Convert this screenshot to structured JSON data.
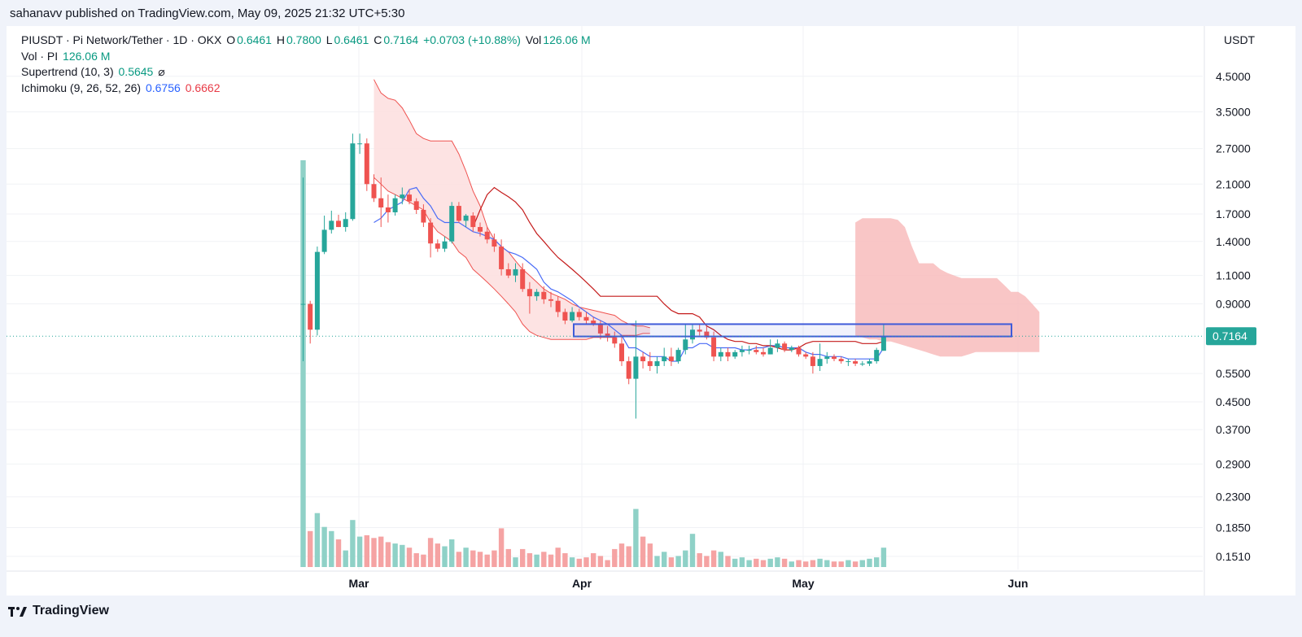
{
  "publisher": "sahanavv published on TradingView.com, May 09, 2025 21:32 UTC+5:30",
  "legend": {
    "symbol_line": {
      "symbol": "PIUSDT · Pi Network/Tether · 1D · OKX",
      "o_label": "O",
      "o": "0.6461",
      "h_label": "H",
      "h": "0.7800",
      "l_label": "L",
      "l": "0.6461",
      "c_label": "C",
      "c": "0.7164",
      "change": "+0.0703 (+10.88%)",
      "vol_label": "Vol",
      "vol": "126.06 M"
    },
    "vol_line": {
      "label": "Vol · PI",
      "value": "126.06 M"
    },
    "supertrend": {
      "label": "Supertrend (10, 3)",
      "value": "0.5645",
      "icon": "crossed-circle-icon"
    },
    "ichimoku": {
      "label": "Ichimoku (9, 26, 52, 26)",
      "v1": "0.6756",
      "v2": "0.6662"
    }
  },
  "currency": "USDT",
  "last_price_label": "0.7164",
  "brand": "TradingView",
  "colors": {
    "up": "#26a69a",
    "down": "#ef5350",
    "up_vol": "#8fd1c7",
    "down_vol": "#f5a3a3",
    "tenkan": "#4a6cf7",
    "kijun": "#c41a1a",
    "cloud": "#f8bcbc",
    "highlight_box": "#3f5bd9"
  },
  "chart_data": {
    "type": "candlestick",
    "title": "PIUSDT · Pi Network/Tether · 1D · OKX",
    "y_scale": "log",
    "ylim": [
      0.14,
      4.9
    ],
    "y_ticks": [
      "4.5000",
      "3.5000",
      "2.7000",
      "2.1000",
      "1.7000",
      "1.4000",
      "1.1000",
      "0.9000",
      "0.7164",
      "0.5500",
      "0.4500",
      "0.3700",
      "0.2900",
      "0.2300",
      "0.1850",
      "0.1510"
    ],
    "x_ticks": [
      "Mar",
      "Apr",
      "May",
      "Jun"
    ],
    "candles": [
      {
        "o": 0.9,
        "h": 2.2,
        "l": 0.6,
        "c": 0.9
      },
      {
        "o": 0.9,
        "h": 0.92,
        "l": 0.68,
        "c": 0.75
      },
      {
        "o": 0.75,
        "h": 1.35,
        "l": 0.72,
        "c": 1.3
      },
      {
        "o": 1.3,
        "h": 1.68,
        "l": 1.28,
        "c": 1.52
      },
      {
        "o": 1.52,
        "h": 1.74,
        "l": 1.48,
        "c": 1.62
      },
      {
        "o": 1.62,
        "h": 1.69,
        "l": 1.55,
        "c": 1.55
      },
      {
        "o": 1.55,
        "h": 1.72,
        "l": 1.5,
        "c": 1.64
      },
      {
        "o": 1.64,
        "h": 3.0,
        "l": 1.62,
        "c": 2.8
      },
      {
        "o": 2.8,
        "h": 3.0,
        "l": 2.6,
        "c": 2.8
      },
      {
        "o": 2.8,
        "h": 2.9,
        "l": 2.0,
        "c": 2.1
      },
      {
        "o": 2.1,
        "h": 2.25,
        "l": 1.85,
        "c": 1.9
      },
      {
        "o": 1.9,
        "h": 2.2,
        "l": 1.55,
        "c": 1.78
      },
      {
        "o": 1.78,
        "h": 1.95,
        "l": 1.6,
        "c": 1.72
      },
      {
        "o": 1.72,
        "h": 1.95,
        "l": 1.68,
        "c": 1.9
      },
      {
        "o": 1.9,
        "h": 2.05,
        "l": 1.82,
        "c": 1.95
      },
      {
        "o": 1.95,
        "h": 2.02,
        "l": 1.82,
        "c": 1.86
      },
      {
        "o": 1.86,
        "h": 1.9,
        "l": 1.7,
        "c": 1.75
      },
      {
        "o": 1.75,
        "h": 1.82,
        "l": 1.55,
        "c": 1.6
      },
      {
        "o": 1.6,
        "h": 1.65,
        "l": 1.25,
        "c": 1.38
      },
      {
        "o": 1.38,
        "h": 1.42,
        "l": 1.3,
        "c": 1.33
      },
      {
        "o": 1.33,
        "h": 1.45,
        "l": 1.3,
        "c": 1.4
      },
      {
        "o": 1.4,
        "h": 1.85,
        "l": 1.38,
        "c": 1.8
      },
      {
        "o": 1.8,
        "h": 1.85,
        "l": 1.6,
        "c": 1.62
      },
      {
        "o": 1.62,
        "h": 1.7,
        "l": 1.55,
        "c": 1.68
      },
      {
        "o": 1.68,
        "h": 1.72,
        "l": 1.5,
        "c": 1.55
      },
      {
        "o": 1.55,
        "h": 1.6,
        "l": 1.45,
        "c": 1.5
      },
      {
        "o": 1.5,
        "h": 1.55,
        "l": 1.38,
        "c": 1.42
      },
      {
        "o": 1.42,
        "h": 1.48,
        "l": 1.3,
        "c": 1.35
      },
      {
        "o": 1.35,
        "h": 1.42,
        "l": 1.1,
        "c": 1.15
      },
      {
        "o": 1.15,
        "h": 1.2,
        "l": 1.08,
        "c": 1.1
      },
      {
        "o": 1.1,
        "h": 1.2,
        "l": 1.05,
        "c": 1.15
      },
      {
        "o": 1.15,
        "h": 1.2,
        "l": 0.98,
        "c": 1.0
      },
      {
        "o": 1.0,
        "h": 1.05,
        "l": 0.84,
        "c": 0.95
      },
      {
        "o": 0.95,
        "h": 1.0,
        "l": 0.92,
        "c": 0.98
      },
      {
        "o": 0.98,
        "h": 1.02,
        "l": 0.9,
        "c": 0.93
      },
      {
        "o": 0.93,
        "h": 0.98,
        "l": 0.88,
        "c": 0.92
      },
      {
        "o": 0.92,
        "h": 0.95,
        "l": 0.82,
        "c": 0.85
      },
      {
        "o": 0.85,
        "h": 0.87,
        "l": 0.78,
        "c": 0.8
      },
      {
        "o": 0.8,
        "h": 0.88,
        "l": 0.79,
        "c": 0.85
      },
      {
        "o": 0.85,
        "h": 0.87,
        "l": 0.8,
        "c": 0.82
      },
      {
        "o": 0.82,
        "h": 0.85,
        "l": 0.78,
        "c": 0.8
      },
      {
        "o": 0.8,
        "h": 0.82,
        "l": 0.77,
        "c": 0.78
      },
      {
        "o": 0.78,
        "h": 0.8,
        "l": 0.7,
        "c": 0.73
      },
      {
        "o": 0.73,
        "h": 0.77,
        "l": 0.69,
        "c": 0.71
      },
      {
        "o": 0.71,
        "h": 0.74,
        "l": 0.66,
        "c": 0.68
      },
      {
        "o": 0.68,
        "h": 0.72,
        "l": 0.58,
        "c": 0.6
      },
      {
        "o": 0.6,
        "h": 0.62,
        "l": 0.51,
        "c": 0.53
      },
      {
        "o": 0.53,
        "h": 0.8,
        "l": 0.4,
        "c": 0.62
      },
      {
        "o": 0.62,
        "h": 0.64,
        "l": 0.57,
        "c": 0.6
      },
      {
        "o": 0.6,
        "h": 0.64,
        "l": 0.56,
        "c": 0.58
      },
      {
        "o": 0.58,
        "h": 0.62,
        "l": 0.55,
        "c": 0.6
      },
      {
        "o": 0.6,
        "h": 0.66,
        "l": 0.58,
        "c": 0.62
      },
      {
        "o": 0.62,
        "h": 0.66,
        "l": 0.58,
        "c": 0.6
      },
      {
        "o": 0.6,
        "h": 0.66,
        "l": 0.59,
        "c": 0.65
      },
      {
        "o": 0.65,
        "h": 0.78,
        "l": 0.63,
        "c": 0.7
      },
      {
        "o": 0.7,
        "h": 0.78,
        "l": 0.68,
        "c": 0.75
      },
      {
        "o": 0.75,
        "h": 0.78,
        "l": 0.72,
        "c": 0.74
      },
      {
        "o": 0.74,
        "h": 0.77,
        "l": 0.7,
        "c": 0.71
      },
      {
        "o": 0.71,
        "h": 0.74,
        "l": 0.6,
        "c": 0.62
      },
      {
        "o": 0.62,
        "h": 0.66,
        "l": 0.6,
        "c": 0.64
      },
      {
        "o": 0.64,
        "h": 0.66,
        "l": 0.6,
        "c": 0.62
      },
      {
        "o": 0.62,
        "h": 0.65,
        "l": 0.61,
        "c": 0.64
      },
      {
        "o": 0.64,
        "h": 0.67,
        "l": 0.62,
        "c": 0.65
      },
      {
        "o": 0.65,
        "h": 0.67,
        "l": 0.63,
        "c": 0.65
      },
      {
        "o": 0.65,
        "h": 0.67,
        "l": 0.63,
        "c": 0.64
      },
      {
        "o": 0.64,
        "h": 0.66,
        "l": 0.62,
        "c": 0.63
      },
      {
        "o": 0.63,
        "h": 0.7,
        "l": 0.63,
        "c": 0.66
      },
      {
        "o": 0.66,
        "h": 0.7,
        "l": 0.64,
        "c": 0.68
      },
      {
        "o": 0.68,
        "h": 0.69,
        "l": 0.64,
        "c": 0.65
      },
      {
        "o": 0.65,
        "h": 0.67,
        "l": 0.64,
        "c": 0.66
      },
      {
        "o": 0.66,
        "h": 0.67,
        "l": 0.62,
        "c": 0.63
      },
      {
        "o": 0.63,
        "h": 0.64,
        "l": 0.61,
        "c": 0.62
      },
      {
        "o": 0.62,
        "h": 0.64,
        "l": 0.55,
        "c": 0.58
      },
      {
        "o": 0.58,
        "h": 0.68,
        "l": 0.56,
        "c": 0.61
      },
      {
        "o": 0.61,
        "h": 0.64,
        "l": 0.59,
        "c": 0.62
      },
      {
        "o": 0.62,
        "h": 0.63,
        "l": 0.6,
        "c": 0.61
      },
      {
        "o": 0.61,
        "h": 0.62,
        "l": 0.59,
        "c": 0.6
      },
      {
        "o": 0.6,
        "h": 0.61,
        "l": 0.58,
        "c": 0.6
      },
      {
        "o": 0.6,
        "h": 0.61,
        "l": 0.58,
        "c": 0.59
      },
      {
        "o": 0.59,
        "h": 0.6,
        "l": 0.58,
        "c": 0.59
      },
      {
        "o": 0.59,
        "h": 0.61,
        "l": 0.58,
        "c": 0.6
      },
      {
        "o": 0.6,
        "h": 0.66,
        "l": 0.59,
        "c": 0.65
      },
      {
        "o": 0.6461,
        "h": 0.78,
        "l": 0.6461,
        "c": 0.7164
      }
    ],
    "volume_relative": [
      100,
      0.26,
      0.39,
      0.29,
      0.26,
      0.2,
      0.12,
      0.34,
      0.22,
      0.23,
      0.21,
      0.22,
      0.18,
      0.17,
      0.16,
      0.14,
      0.1,
      0.09,
      0.21,
      0.17,
      0.15,
      0.2,
      0.11,
      0.14,
      0.12,
      0.11,
      0.09,
      0.12,
      0.28,
      0.13,
      0.07,
      0.13,
      0.1,
      0.09,
      0.11,
      0.09,
      0.14,
      0.1,
      0.07,
      0.06,
      0.07,
      0.1,
      0.08,
      0.05,
      0.13,
      0.17,
      0.15,
      0.42,
      0.22,
      0.17,
      0.08,
      0.11,
      0.07,
      0.08,
      0.12,
      0.24,
      0.1,
      0.08,
      0.12,
      0.11,
      0.08,
      0.06,
      0.07,
      0.05,
      0.06,
      0.05,
      0.06,
      0.07,
      0.06,
      0.04,
      0.05,
      0.04,
      0.05,
      0.06,
      0.05,
      0.04,
      0.04,
      0.05,
      0.04,
      0.05,
      0.06,
      0.07,
      0.14
    ],
    "tenkan": [
      null,
      null,
      null,
      null,
      null,
      null,
      null,
      null,
      null,
      null,
      1.6,
      1.65,
      1.75,
      1.8,
      1.85,
      2.02,
      2.05,
      1.9,
      1.8,
      1.65,
      1.6,
      1.6,
      1.6,
      1.55,
      1.5,
      1.48,
      1.45,
      1.42,
      1.35,
      1.3,
      1.28,
      1.25,
      1.2,
      1.15,
      1.05,
      1.0,
      0.98,
      0.95,
      0.92,
      0.88,
      0.85,
      0.82,
      0.8,
      0.78,
      0.75,
      0.72,
      0.66,
      0.66,
      0.64,
      0.62,
      0.62,
      0.62,
      0.6,
      0.6,
      0.66,
      0.66,
      0.68,
      0.68,
      0.66,
      0.66,
      0.66,
      0.66,
      0.65,
      0.65,
      0.66,
      0.66,
      0.67,
      0.67,
      0.66,
      0.66,
      0.66,
      0.64,
      0.63,
      0.63,
      0.62,
      0.62,
      0.62,
      0.61,
      0.61,
      0.61,
      0.61,
      0.61,
      0.66
    ],
    "kijun": [
      null,
      null,
      null,
      null,
      null,
      null,
      null,
      null,
      null,
      null,
      null,
      null,
      null,
      null,
      null,
      null,
      null,
      null,
      null,
      null,
      null,
      null,
      null,
      null,
      1.55,
      1.75,
      1.95,
      2.05,
      1.98,
      1.92,
      1.85,
      1.75,
      1.6,
      1.48,
      1.4,
      1.32,
      1.25,
      1.2,
      1.15,
      1.1,
      1.05,
      1.0,
      0.95,
      0.95,
      0.95,
      0.95,
      0.95,
      0.95,
      0.95,
      0.95,
      0.95,
      0.9,
      0.86,
      0.84,
      0.84,
      0.84,
      0.82,
      0.77,
      0.75,
      0.72,
      0.7,
      0.69,
      0.69,
      0.68,
      0.68,
      0.67,
      0.67,
      0.66,
      0.65,
      0.65,
      0.66,
      0.68,
      0.69,
      0.69,
      0.69,
      0.69,
      0.69,
      0.69,
      0.69,
      0.68,
      0.68,
      0.68,
      0.69
    ],
    "cloud_past_upper": [
      4.4,
      4.0,
      3.85,
      3.8,
      3.6,
      3.3,
      3.0,
      2.9,
      2.85,
      2.85,
      2.85,
      2.85,
      2.6,
      2.3,
      2.0,
      1.8,
      1.55,
      1.42,
      1.35,
      1.3,
      1.22,
      1.15,
      1.1,
      1.05,
      1.0,
      0.97,
      0.95,
      0.93,
      0.9,
      0.88,
      0.87,
      0.86,
      0.85,
      0.84,
      0.83,
      0.8,
      0.78,
      0.77,
      0.77,
      0.76
    ],
    "cloud_past_lower": [
      2.2,
      2.1,
      2.0,
      1.95,
      1.9,
      1.85,
      1.8,
      1.75,
      1.6,
      1.5,
      1.45,
      1.4,
      1.3,
      1.25,
      1.15,
      1.1,
      1.05,
      1.0,
      0.95,
      0.9,
      0.85,
      0.78,
      0.74,
      0.72,
      0.71,
      0.7,
      0.7,
      0.7,
      0.7,
      0.7,
      0.7,
      0.71,
      0.71,
      0.71,
      0.71,
      0.72,
      0.72,
      0.72,
      0.73,
      0.73
    ],
    "cloud_future_upper": [
      1.6,
      1.65,
      1.65,
      1.65,
      1.65,
      1.65,
      1.63,
      1.55,
      1.35,
      1.2,
      1.2,
      1.2,
      1.15,
      1.12,
      1.1,
      1.08,
      1.08,
      1.08,
      1.08,
      1.08,
      1.08,
      1.03,
      0.98,
      0.98,
      0.95,
      0.9,
      0.85
    ],
    "cloud_future_lower": [
      0.72,
      0.71,
      0.7,
      0.7,
      0.69,
      0.69,
      0.68,
      0.67,
      0.66,
      0.65,
      0.64,
      0.63,
      0.62,
      0.62,
      0.62,
      0.62,
      0.63,
      0.64,
      0.64,
      0.64,
      0.64,
      0.64,
      0.64,
      0.64,
      0.64,
      0.64,
      0.64
    ],
    "highlight_zone": [
      0.715,
      0.78
    ],
    "last_price": 0.7164
  }
}
